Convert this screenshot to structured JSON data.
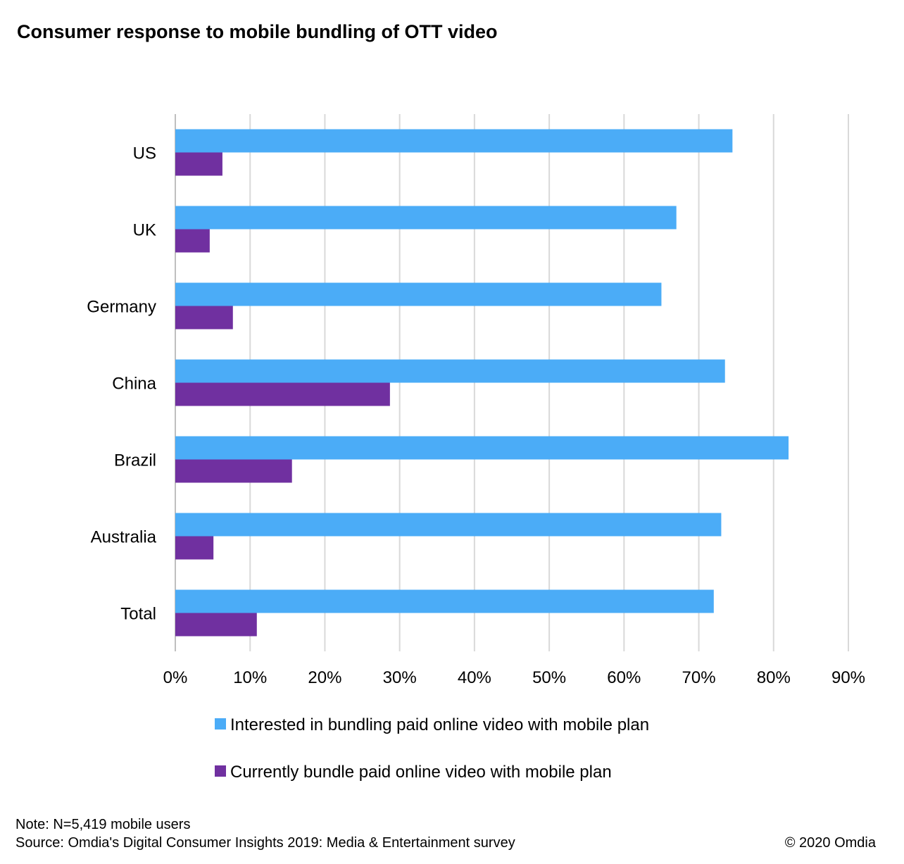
{
  "title": "Consumer response to mobile bundling  of OTT video",
  "note": "Note: N=5,419 mobile users",
  "source": "Source: Omdia's Digital Consumer Insights 2019: Media & Entertainment survey",
  "copyright": "© 2020 Omdia",
  "chart_data": {
    "type": "bar",
    "orientation": "horizontal",
    "categories": [
      "US",
      "UK",
      "Germany",
      "China",
      "Brazil",
      "Australia",
      "Total"
    ],
    "series": [
      {
        "name": "Interested in bundling paid online video with mobile plan",
        "color": "#4BACF7",
        "values": [
          74.5,
          67,
          65,
          73.5,
          82,
          73,
          72
        ]
      },
      {
        "name": "Currently bundle paid online video with mobile plan",
        "color": "#7030A0",
        "values": [
          6.3,
          4.6,
          7.7,
          28.7,
          15.6,
          5.1,
          10.9
        ]
      }
    ],
    "x_ticks": [
      "0%",
      "10%",
      "20%",
      "30%",
      "40%",
      "50%",
      "60%",
      "70%",
      "80%",
      "90%"
    ],
    "xlim": [
      0,
      90
    ],
    "grid": true,
    "legend_position": "bottom"
  }
}
